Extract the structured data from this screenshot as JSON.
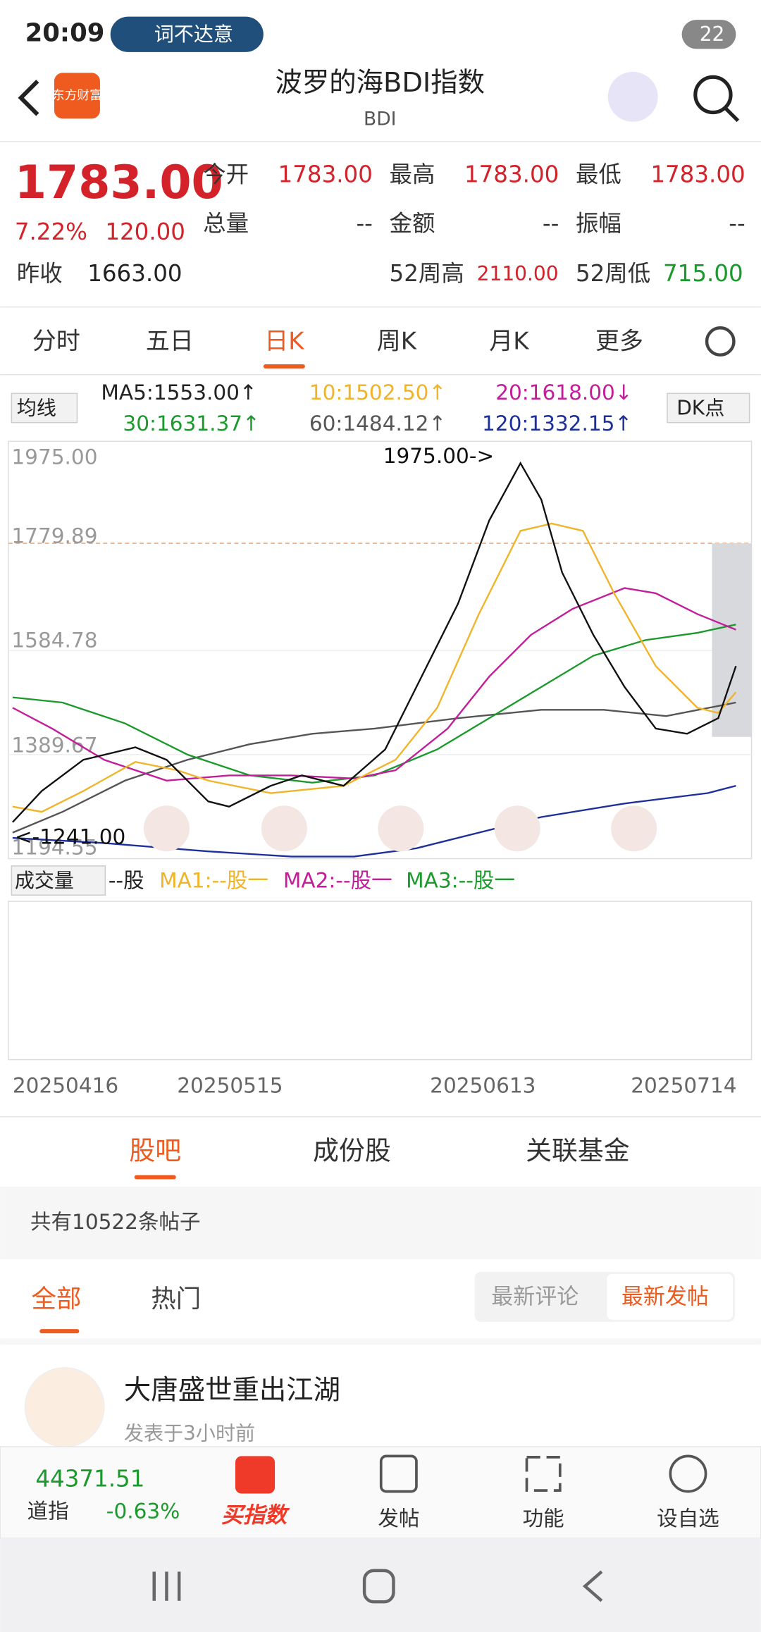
{
  "status": {
    "time": "20:09",
    "app": "词不达意",
    "battery": "22"
  },
  "header": {
    "logo": "东方财富",
    "title": "波罗的海BDI指数",
    "code": "BDI"
  },
  "quote": {
    "price": "1783.00",
    "change_pct": "7.22%",
    "change": "120.00",
    "fields": [
      [
        "今开",
        "1783.00"
      ],
      [
        "最高",
        "1783.00"
      ],
      [
        "最低",
        "1783.00"
      ],
      [
        "总量",
        "--"
      ],
      [
        "金额",
        "--"
      ],
      [
        "振幅",
        "--"
      ],
      [
        "昨收",
        "1663.00"
      ],
      [
        "52周高",
        "2110.00"
      ],
      [
        "52周低",
        "715.00"
      ]
    ]
  },
  "tabs": [
    "分时",
    "五日",
    "日K",
    "周K",
    "月K",
    "更多"
  ],
  "ma": {
    "selector": "均线",
    "ma5": "MA5:1553.00↑",
    "ma10": "10:1502.50↑",
    "ma20": "20:1618.00↓",
    "ma30": "30:1631.37↑",
    "ma60": "60:1484.12↑",
    "ma120": "120:1332.15↑",
    "dk": "DK点"
  },
  "axis": {
    "labels": [
      "1975.00",
      "1779.89",
      "1584.78",
      "1389.67",
      "1194.55"
    ],
    "high": "1975.00->",
    "low": "<-1241.00"
  },
  "volume": {
    "selector": "成交量",
    "unit": "--股",
    "ma1": "MA1:--股一",
    "ma2": "MA2:--股一",
    "ma3": "MA3:--股一"
  },
  "dates": [
    "20250416",
    "20250515",
    "20250613",
    "20250714"
  ],
  "section_tabs": [
    "股吧",
    "成份股",
    "关联基金"
  ],
  "post_count": "共有10522条帖子",
  "filters": [
    "全部",
    "热门"
  ],
  "sort": [
    "最新评论",
    "最新发帖"
  ],
  "post": {
    "author": "大唐盛世重出江湖",
    "time": "发表于3小时前"
  },
  "bottom": {
    "index_value": "44371.51",
    "index_name": "道指",
    "index_change": "-0.63%",
    "items": [
      "买指数",
      "发帖",
      "功能",
      "设自选"
    ]
  }
}
